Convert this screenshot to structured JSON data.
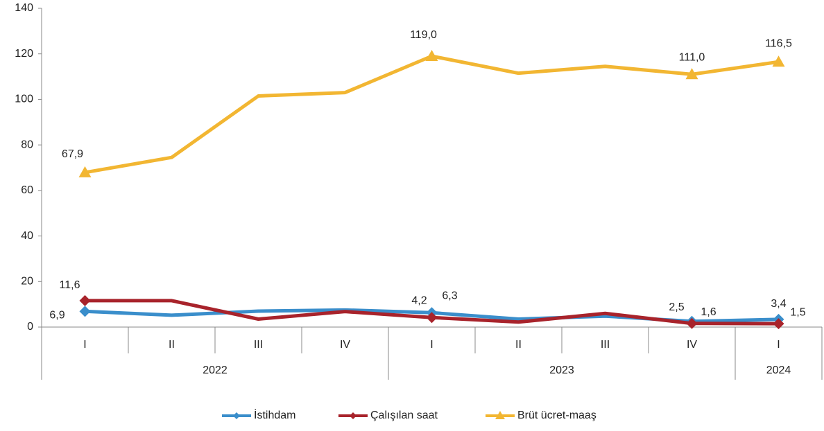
{
  "chart_data": {
    "type": "line",
    "groups": [
      {
        "name": "2022",
        "categories": [
          "I",
          "II",
          "III",
          "IV"
        ]
      },
      {
        "name": "2023",
        "categories": [
          "I",
          "II",
          "III",
          "IV"
        ]
      },
      {
        "name": "2024",
        "categories": [
          "I"
        ]
      }
    ],
    "series": [
      {
        "name": "İstihdam",
        "color": "#3a8ecb",
        "marker": "diamond",
        "values": [
          6.9,
          5.2,
          7.0,
          7.5,
          6.3,
          3.5,
          4.8,
          2.5,
          3.4
        ],
        "value_labels": [
          "6,9",
          null,
          null,
          null,
          "6,3",
          null,
          null,
          "2,5",
          "3,4"
        ]
      },
      {
        "name": "Çalışılan saat",
        "color": "#a8232b",
        "marker": "diamond",
        "values": [
          11.6,
          11.6,
          3.5,
          6.8,
          4.2,
          2.2,
          6.0,
          1.6,
          1.5
        ],
        "value_labels": [
          "11,6",
          null,
          null,
          null,
          "4,2",
          null,
          null,
          "1,6",
          "1,5"
        ]
      },
      {
        "name": "Brüt ücret-maaş",
        "color": "#f2b632",
        "marker": "triangle",
        "values": [
          67.9,
          74.5,
          101.5,
          103.0,
          119.0,
          111.5,
          114.5,
          111.0,
          116.5
        ],
        "value_labels": [
          "67,9",
          null,
          null,
          null,
          "119,0",
          null,
          null,
          "111,0",
          "116,5"
        ]
      }
    ],
    "ylim": [
      0,
      140
    ],
    "yticks": [
      0,
      20,
      40,
      60,
      80,
      100,
      120,
      140
    ],
    "grid": false,
    "legend": "bottom"
  }
}
